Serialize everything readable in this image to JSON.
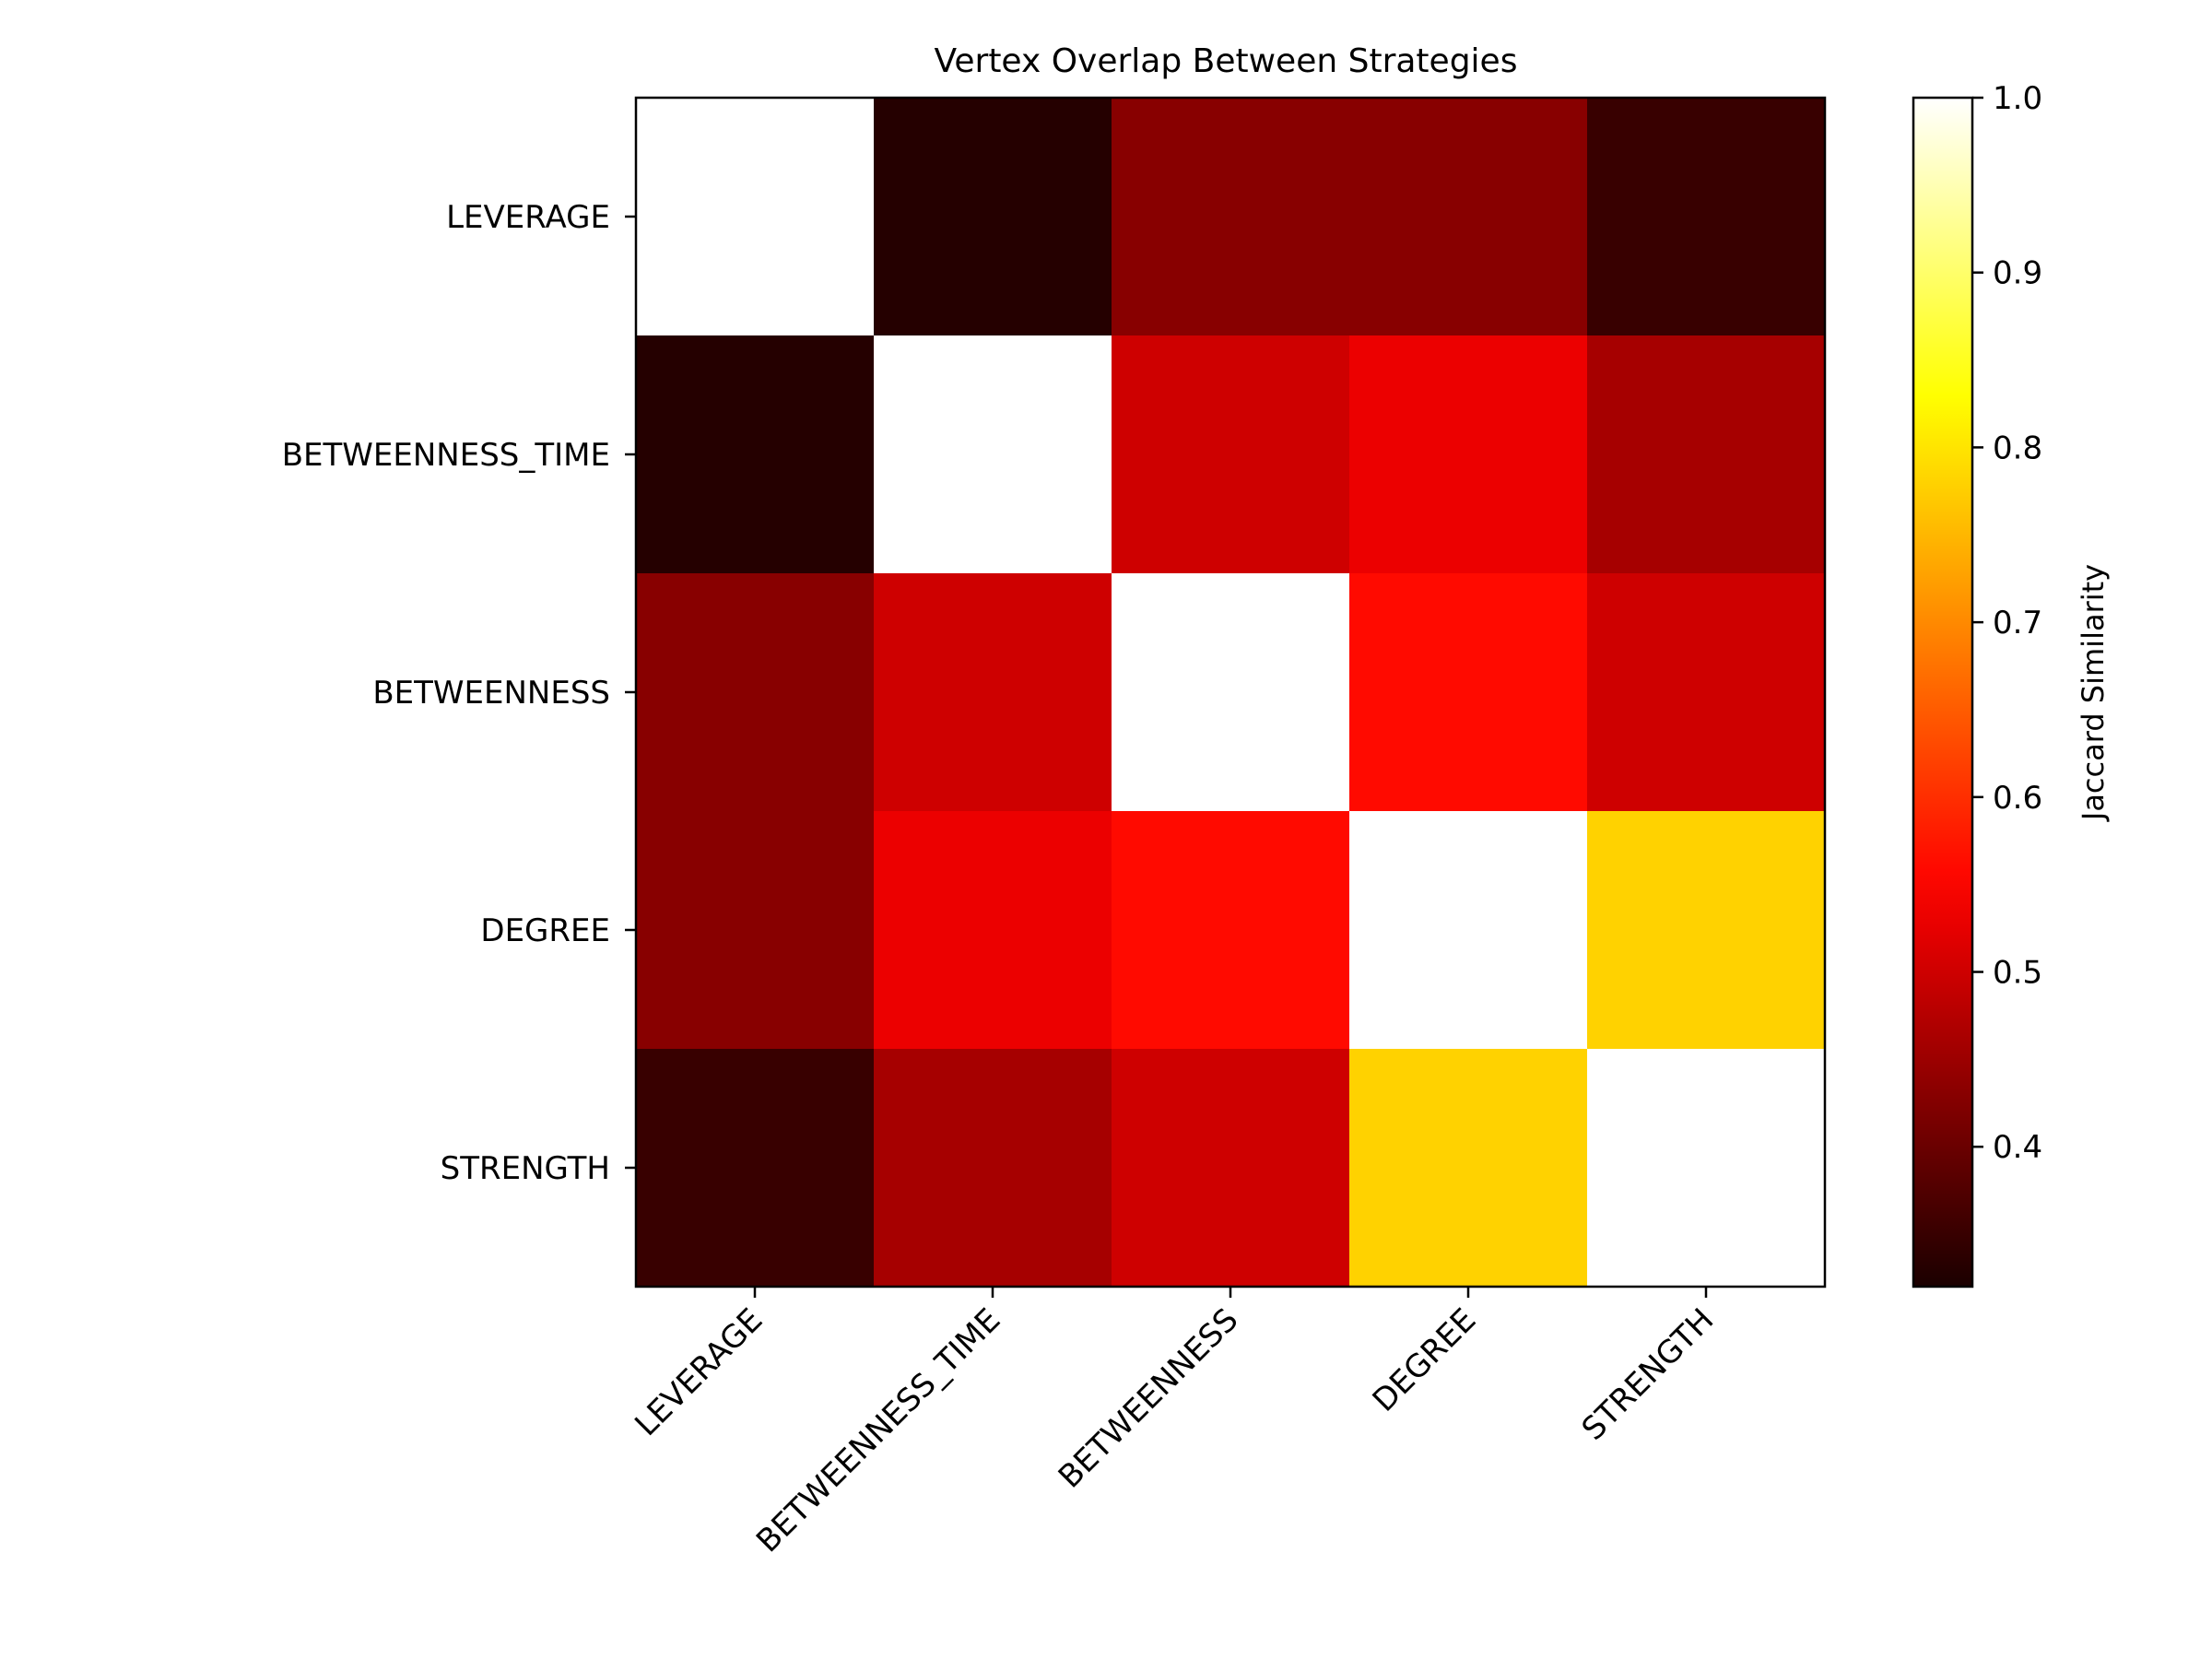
{
  "chart_data": {
    "type": "heatmap",
    "title": "Vertex Overlap Between Strategies",
    "rows": [
      "LEVERAGE",
      "BETWEENNESS_TIME",
      "BETWEENNESS",
      "DEGREE",
      "STRENGTH"
    ],
    "columns": [
      "LEVERAGE",
      "BETWEENNESS_TIME",
      "BETWEENNESS",
      "DEGREE",
      "STRENGTH"
    ],
    "values": [
      [
        1.0,
        0.33,
        0.43,
        0.43,
        0.35
      ],
      [
        0.33,
        1.0,
        0.5,
        0.53,
        0.46
      ],
      [
        0.43,
        0.5,
        1.0,
        0.56,
        0.5
      ],
      [
        0.43,
        0.53,
        0.56,
        1.0,
        0.78
      ],
      [
        0.35,
        0.46,
        0.5,
        0.78,
        1.0
      ]
    ],
    "colormap": "hot",
    "colorbar": {
      "label": "Jaccard Similarity",
      "range": [
        0.32,
        1.0
      ],
      "ticks": [
        "0.4",
        "0.5",
        "0.6",
        "0.7",
        "0.8",
        "0.9",
        "1.0"
      ]
    }
  }
}
